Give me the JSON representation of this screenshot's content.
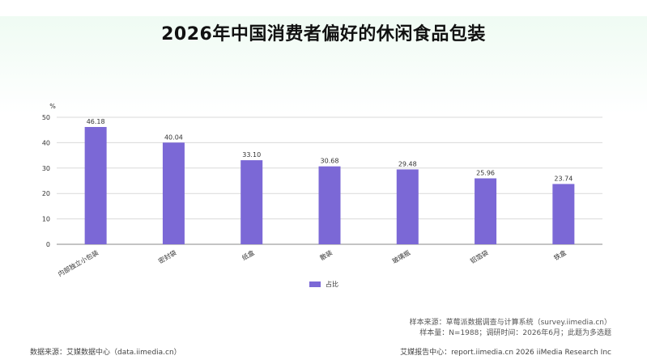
{
  "header": {
    "title": "2026年中国消费者偏好的休闲食品包装"
  },
  "chart_data": {
    "type": "bar",
    "categories": [
      "内部独立小包装",
      "密封袋",
      "纸盒",
      "散装",
      "玻璃瓶",
      "铝箔袋",
      "铁盒"
    ],
    "series": [
      {
        "name": "占比",
        "values": [
          46.18,
          40.04,
          33.1,
          30.68,
          29.48,
          25.96,
          23.74
        ],
        "labels": [
          "46.18",
          "40.04",
          "33.10",
          "30.68",
          "29.48",
          "25.96",
          "23.74"
        ]
      }
    ],
    "ylabel": "%",
    "ylim": [
      0,
      50
    ],
    "yticks": [
      0,
      10,
      20,
      30,
      40,
      50
    ],
    "grid": true,
    "legend_position": "bottom-center",
    "bar_color": "#7b68d6"
  },
  "notes": {
    "sample_source": "样本来源：草莓派数据调查与计算系统（survey.iimedia.cn）",
    "sample_size": "样本量：N=1988；调研时间：2026年6月；此题为多选题"
  },
  "footer": {
    "data_source": "数据来源：艾媒数据中心（data.iimedia.cn）",
    "report_center": "艾媒报告中心：report.iimedia.cn   2026 iiMedia Research Inc"
  }
}
